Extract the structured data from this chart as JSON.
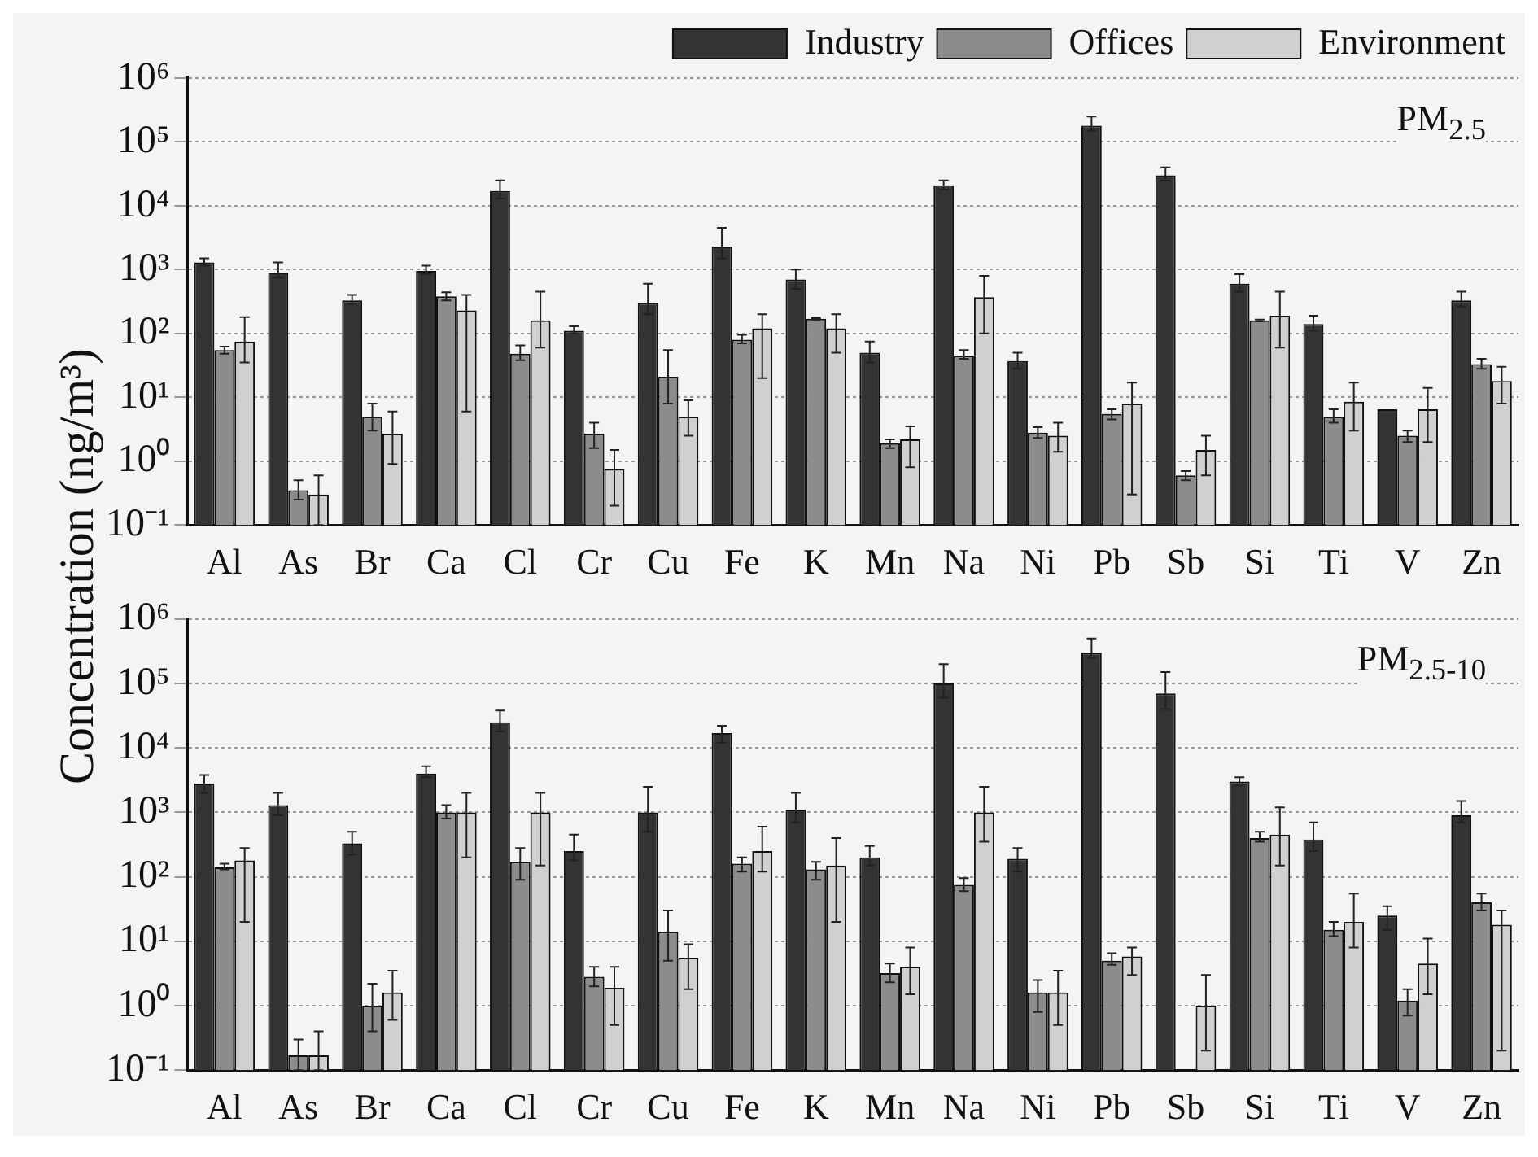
{
  "chart_data": [
    {
      "type": "bar",
      "ylabel": "Concentration (ng/m³)",
      "annotations": [
        "PM$_{2.5}$"
      ],
      "legend": "top",
      "grid": "y",
      "log": "y",
      "categories": [
        "Al",
        "As",
        "Br",
        "Ca",
        "Cl",
        "Cr",
        "Cu",
        "Fe",
        "K",
        "Mn",
        "Na",
        "Ni",
        "Pb",
        "Sb",
        "Si",
        "Ti",
        "V",
        "Zn"
      ],
      "ylim": [
        0.1,
        1000000
      ],
      "yticks": [
        {
          "value": 0.1,
          "label": "10⁻¹"
        },
        {
          "value": 1,
          "label": "10⁰"
        },
        {
          "value": 10,
          "label": "10¹"
        },
        {
          "value": 100,
          "label": "10²"
        },
        {
          "value": 1000,
          "label": "10³"
        },
        {
          "value": 10000,
          "label": "10⁴"
        },
        {
          "value": 100000,
          "label": "10⁵"
        },
        {
          "value": 1000000,
          "label": "10⁶"
        }
      ],
      "series": [
        {
          "name": "Industry",
          "color": "#333333",
          "values": [
            1300,
            900,
            330,
            950,
            17000,
            110,
            300,
            2300,
            700,
            50,
            21000,
            37,
            180000,
            30000,
            600,
            140,
            6.5,
            330
          ],
          "errors": [
            [
              1150,
              1500
            ],
            [
              750,
              1300
            ],
            [
              290,
              400
            ],
            [
              850,
              1150
            ],
            [
              13000,
              25000
            ],
            [
              100,
              130
            ],
            [
              200,
              600
            ],
            [
              1500,
              4500
            ],
            [
              500,
              1000
            ],
            [
              35,
              75
            ],
            [
              18000,
              25000
            ],
            [
              28,
              50
            ],
            [
              150000,
              250000
            ],
            [
              25000,
              40000
            ],
            [
              450,
              850
            ],
            [
              110,
              190
            ],
            null,
            [
              260,
              450
            ]
          ]
        },
        {
          "name": "Offices",
          "color": "#8c8c8c",
          "values": [
            55,
            0.35,
            5,
            380,
            48,
            2.7,
            21,
            80,
            170,
            1.9,
            45,
            2.8,
            5.5,
            0.6,
            160,
            5,
            2.5,
            33
          ],
          "errors": [
            [
              48,
              62
            ],
            [
              0.25,
              0.5
            ],
            [
              3,
              8
            ],
            [
              330,
              440
            ],
            [
              38,
              65
            ],
            [
              1.6,
              4
            ],
            [
              8,
              55
            ],
            [
              70,
              95
            ],
            [
              165,
              175
            ],
            [
              1.6,
              2.2
            ],
            [
              40,
              55
            ],
            [
              2.3,
              3.4
            ],
            [
              4.5,
              6.5
            ],
            [
              0.5,
              0.7
            ],
            [
              155,
              165
            ],
            [
              4,
              6.5
            ],
            [
              2,
              3
            ],
            [
              28,
              40
            ]
          ]
        },
        {
          "name": "Environment",
          "color": "#d0d0d0",
          "values": [
            75,
            0.3,
            2.7,
            230,
            160,
            0.75,
            5,
            120,
            120,
            2.2,
            370,
            2.5,
            8,
            1.5,
            190,
            8.5,
            6.5,
            18
          ],
          "errors": [
            [
              35,
              180
            ],
            [
              0.1,
              0.6
            ],
            [
              0.9,
              6
            ],
            [
              6,
              400
            ],
            [
              60,
              450
            ],
            [
              0.2,
              1.5
            ],
            [
              2.5,
              9
            ],
            [
              20,
              200
            ],
            [
              50,
              200
            ],
            [
              0.8,
              3.5
            ],
            [
              100,
              800
            ],
            [
              1.4,
              4
            ],
            [
              0.3,
              17
            ],
            [
              0.6,
              2.5
            ],
            [
              60,
              450
            ],
            [
              3,
              17
            ],
            [
              2,
              14
            ],
            [
              8,
              30
            ]
          ]
        }
      ]
    },
    {
      "type": "bar",
      "annotations": [
        "PM$_{2.5-10}$"
      ],
      "grid": "y",
      "log": "y",
      "categories": [
        "Al",
        "As",
        "Br",
        "Ca",
        "Cl",
        "Cr",
        "Cu",
        "Fe",
        "K",
        "Mn",
        "Na",
        "Ni",
        "Pb",
        "Sb",
        "Si",
        "Ti",
        "V",
        "Zn"
      ],
      "ylim": [
        0.1,
        1000000
      ],
      "yticks": [
        {
          "value": 0.1,
          "label": "10⁻¹"
        },
        {
          "value": 1,
          "label": "10⁰"
        },
        {
          "value": 10,
          "label": "10¹"
        },
        {
          "value": 100,
          "label": "10²"
        },
        {
          "value": 1000,
          "label": "10³"
        },
        {
          "value": 10000,
          "label": "10⁴"
        },
        {
          "value": 100000,
          "label": "10⁵"
        },
        {
          "value": 1000000,
          "label": "10⁶"
        }
      ],
      "series": [
        {
          "color": "#333333",
          "values": [
            2800,
            1300,
            330,
            4000,
            25000,
            250,
            1000,
            17000,
            1100,
            200,
            100000,
            190,
            300000,
            70000,
            3000,
            380,
            25,
            900
          ],
          "errors": [
            [
              2000,
              3800
            ],
            [
              900,
              2000
            ],
            [
              220,
              500
            ],
            [
              3500,
              5200
            ],
            [
              18000,
              38000
            ],
            [
              180,
              450
            ],
            [
              500,
              2500
            ],
            [
              12000,
              22000
            ],
            [
              700,
              2000
            ],
            [
              150,
              300
            ],
            [
              60000,
              200000
            ],
            [
              120,
              280
            ],
            [
              250000,
              500000
            ],
            [
              40000,
              150000
            ],
            [
              2600,
              3500
            ],
            [
              250,
              700
            ],
            [
              15,
              35
            ],
            [
              700,
              1500
            ]
          ]
        },
        {
          "color": "#8c8c8c",
          "values": [
            140,
            0.17,
            1,
            1000,
            170,
            2.8,
            14,
            160,
            130,
            3.2,
            75,
            1.6,
            5,
            null,
            400,
            15,
            1.2,
            40
          ],
          "errors": [
            [
              130,
              160
            ],
            [
              0.1,
              0.3
            ],
            [
              0.4,
              2.2
            ],
            [
              800,
              1300
            ],
            [
              90,
              280
            ],
            [
              2,
              4
            ],
            [
              5,
              30
            ],
            [
              120,
              200
            ],
            [
              90,
              170
            ],
            [
              2.3,
              4.5
            ],
            [
              60,
              95
            ],
            [
              0.8,
              2.5
            ],
            [
              4.3,
              6.5
            ],
            null,
            [
              350,
              500
            ],
            [
              12,
              20
            ],
            [
              0.7,
              1.8
            ],
            [
              30,
              55
            ]
          ]
        },
        {
          "color": "#d0d0d0",
          "values": [
            180,
            0.17,
            1.6,
            1000,
            1000,
            1.9,
            5.5,
            250,
            150,
            4,
            1000,
            1.6,
            5.8,
            1,
            450,
            20,
            4.5,
            18
          ],
          "errors": [
            [
              20,
              280
            ],
            [
              0.1,
              0.4
            ],
            [
              0.6,
              3.5
            ],
            [
              200,
              2000
            ],
            [
              150,
              2000
            ],
            [
              0.5,
              4
            ],
            [
              1.8,
              9
            ],
            [
              120,
              600
            ],
            [
              20,
              400
            ],
            [
              1.5,
              8
            ],
            [
              350,
              2500
            ],
            [
              0.5,
              3.5
            ],
            [
              3,
              8
            ],
            [
              0.2,
              3
            ],
            [
              150,
              1200
            ],
            [
              8,
              55
            ],
            [
              1.5,
              11
            ],
            [
              0.2,
              30
            ]
          ]
        }
      ]
    }
  ]
}
